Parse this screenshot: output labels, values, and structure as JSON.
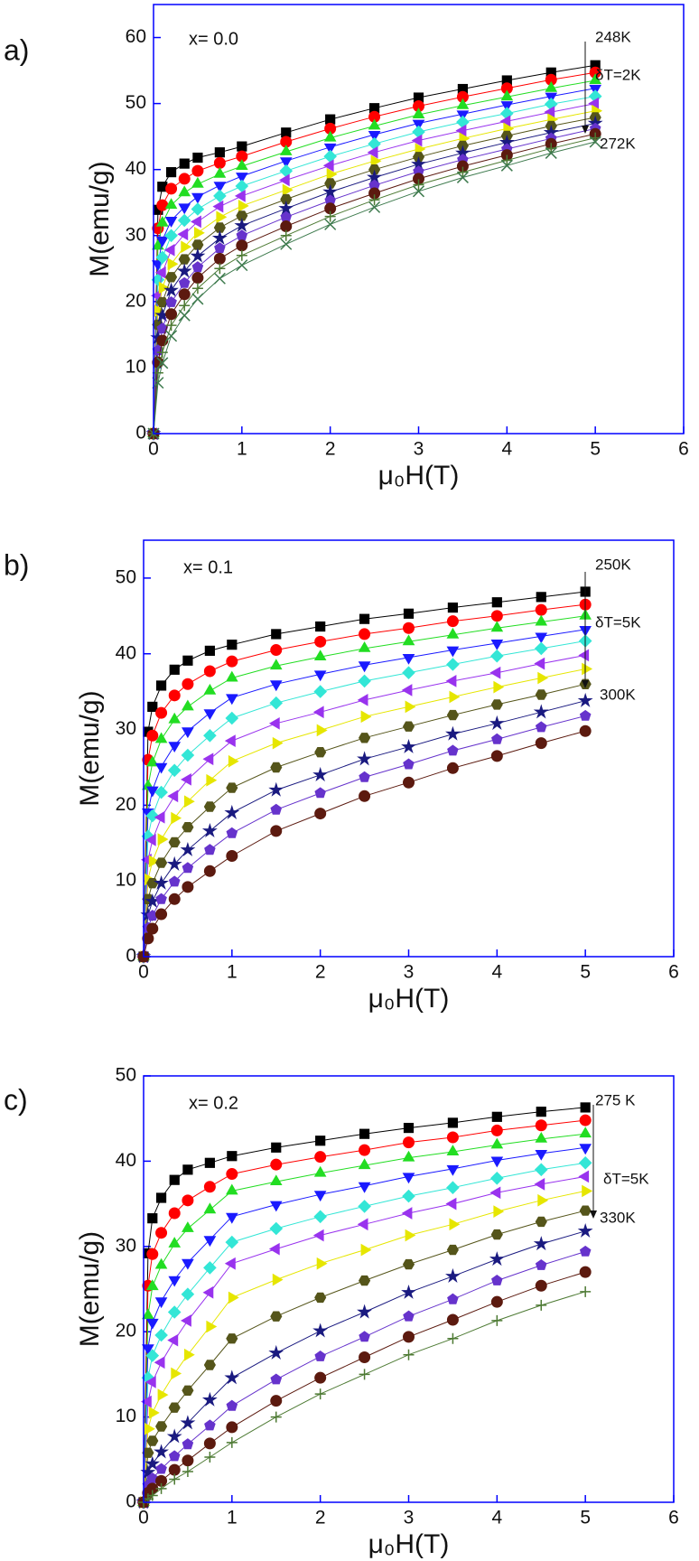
{
  "chart_data": [
    {
      "type": "line",
      "panel_label": "a)",
      "annotations": [
        "x= 0.0",
        "248K",
        "δT=2K",
        "272K"
      ],
      "xlabel": "μ₀H(T)",
      "ylabel": "M(emu/g)",
      "xlim": [
        0,
        6
      ],
      "xticks": [
        0,
        1,
        2,
        3,
        4,
        5,
        6
      ],
      "ylim": [
        0,
        65
      ],
      "yticks": [
        0,
        10,
        20,
        30,
        40,
        50,
        60
      ],
      "x": [
        0,
        0.05,
        0.1,
        0.2,
        0.35,
        0.5,
        0.75,
        1,
        1.5,
        2,
        2.5,
        3,
        3.5,
        4,
        4.5,
        5
      ],
      "series": [
        {
          "color": "#000000",
          "marker": "square",
          "values": [
            0,
            33.9,
            37.4,
            39.6,
            40.9,
            41.8,
            42.6,
            43.5,
            45.6,
            47.6,
            49.3,
            50.9,
            52.2,
            53.5,
            54.7,
            55.8
          ]
        },
        {
          "color": "#ff0000",
          "marker": "circle",
          "values": [
            0,
            31.1,
            34.6,
            37.1,
            38.6,
            39.8,
            41.0,
            42.0,
            44.2,
            46.2,
            48.0,
            49.6,
            51.0,
            52.3,
            53.6,
            54.7
          ]
        },
        {
          "color": "#22dd22",
          "marker": "triangle-up",
          "values": [
            0,
            28.4,
            31.9,
            34.6,
            36.5,
            37.8,
            39.3,
            40.5,
            42.7,
            44.8,
            46.6,
            48.3,
            49.7,
            51.0,
            52.3,
            53.5
          ]
        },
        {
          "color": "#1a1aff",
          "marker": "triangle-down",
          "values": [
            0,
            25.7,
            29.3,
            32.3,
            34.3,
            35.9,
            37.6,
            39.0,
            41.3,
            43.4,
            45.3,
            47.0,
            48.4,
            49.8,
            51.1,
            52.3
          ]
        },
        {
          "color": "#33e6d6",
          "marker": "diamond",
          "values": [
            0,
            23.3,
            26.7,
            30.0,
            32.3,
            34.0,
            36.0,
            37.5,
            39.8,
            42.0,
            43.9,
            45.7,
            47.2,
            48.5,
            49.9,
            51.1
          ]
        },
        {
          "color": "#9933ee",
          "marker": "triangle-left",
          "values": [
            0,
            20.9,
            24.4,
            27.8,
            30.2,
            32.1,
            34.4,
            36.0,
            38.4,
            40.6,
            42.6,
            44.4,
            45.9,
            47.3,
            48.7,
            50.0
          ]
        },
        {
          "color": "#e6e600",
          "marker": "triangle-right",
          "values": [
            0,
            18.6,
            22.1,
            25.7,
            28.3,
            30.4,
            32.8,
            34.5,
            36.9,
            39.3,
            41.3,
            43.1,
            44.7,
            46.2,
            47.6,
            48.9
          ]
        },
        {
          "color": "#55551a",
          "marker": "hexagon",
          "values": [
            0,
            16.5,
            19.9,
            23.7,
            26.4,
            28.6,
            31.2,
            33.0,
            35.5,
            37.9,
            40.0,
            41.9,
            43.6,
            45.1,
            46.6,
            47.9
          ]
        },
        {
          "color": "#1a1a80",
          "marker": "star",
          "values": [
            0,
            14.5,
            17.9,
            21.7,
            24.6,
            26.9,
            29.6,
            31.5,
            34.1,
            36.6,
            38.8,
            40.8,
            42.5,
            44.1,
            45.6,
            47.0
          ]
        },
        {
          "color": "#6633cc",
          "marker": "pentagon",
          "values": [
            0,
            12.6,
            15.9,
            19.9,
            22.8,
            25.2,
            28.1,
            30.0,
            32.8,
            35.3,
            37.6,
            39.7,
            41.5,
            43.1,
            44.7,
            46.2
          ]
        },
        {
          "color": "#5c1a0f",
          "marker": "circle",
          "values": [
            0,
            10.8,
            14.1,
            18.1,
            21.1,
            23.6,
            26.5,
            28.5,
            31.4,
            34.1,
            36.4,
            38.6,
            40.5,
            42.2,
            43.9,
            45.4
          ]
        },
        {
          "color": "#4d7a33",
          "marker": "plus",
          "values": [
            0,
            9.2,
            12.3,
            16.4,
            19.4,
            22.0,
            25.0,
            27.0,
            30.0,
            32.9,
            35.4,
            37.7,
            39.6,
            41.4,
            43.2,
            44.8
          ]
        },
        {
          "color": "#3d7a4d",
          "marker": "cross",
          "values": [
            0,
            7.7,
            10.7,
            14.8,
            17.9,
            20.4,
            23.5,
            25.5,
            28.7,
            31.7,
            34.3,
            36.7,
            38.8,
            40.6,
            42.5,
            44.2
          ]
        }
      ]
    },
    {
      "type": "line",
      "panel_label": "b)",
      "annotations": [
        "x= 0.1",
        "250K",
        "δT=5K",
        "300K"
      ],
      "xlabel": "μ₀H(T)",
      "ylabel": "M(emu/g)",
      "xlim": [
        0,
        6
      ],
      "xticks": [
        0,
        1,
        2,
        3,
        4,
        5,
        6
      ],
      "ylim": [
        0,
        55
      ],
      "yticks": [
        0,
        10,
        20,
        30,
        40,
        50
      ],
      "x": [
        0,
        0.05,
        0.1,
        0.2,
        0.35,
        0.5,
        0.75,
        1,
        1.5,
        2,
        2.5,
        3,
        3.5,
        4,
        4.5,
        5
      ],
      "series": [
        {
          "color": "#000000",
          "marker": "square",
          "values": [
            0,
            29.7,
            33.0,
            35.8,
            37.9,
            39.1,
            40.4,
            41.2,
            42.6,
            43.6,
            44.6,
            45.3,
            46.1,
            46.8,
            47.5,
            48.2
          ]
        },
        {
          "color": "#ff0000",
          "marker": "circle",
          "values": [
            0,
            26.0,
            29.2,
            32.2,
            34.5,
            36.0,
            37.7,
            39.0,
            40.5,
            41.6,
            42.6,
            43.4,
            44.3,
            45.0,
            45.8,
            46.5
          ]
        },
        {
          "color": "#22dd22",
          "marker": "triangle-up",
          "values": [
            0,
            22.5,
            25.6,
            28.7,
            31.3,
            33.0,
            35.1,
            36.8,
            38.4,
            39.6,
            40.7,
            41.6,
            42.5,
            43.4,
            44.2,
            45.0
          ]
        },
        {
          "color": "#1a1aff",
          "marker": "triangle-down",
          "values": [
            0,
            19.1,
            22.0,
            25.1,
            27.9,
            29.8,
            32.2,
            34.2,
            36.0,
            37.3,
            38.5,
            39.5,
            40.5,
            41.4,
            42.3,
            43.2
          ]
        },
        {
          "color": "#33e6d6",
          "marker": "diamond",
          "values": [
            0,
            15.9,
            18.6,
            21.7,
            24.6,
            26.6,
            29.2,
            31.5,
            33.5,
            35.0,
            36.4,
            37.5,
            38.6,
            39.7,
            40.7,
            41.7
          ]
        },
        {
          "color": "#9933ee",
          "marker": "triangle-left",
          "values": [
            0,
            12.8,
            15.4,
            18.4,
            21.2,
            23.4,
            26.1,
            28.5,
            30.8,
            32.3,
            33.9,
            35.2,
            36.4,
            37.5,
            38.7,
            39.8
          ]
        },
        {
          "color": "#e6e600",
          "marker": "triangle-right",
          "values": [
            0,
            10.2,
            12.6,
            15.5,
            18.3,
            20.5,
            23.3,
            25.8,
            28.2,
            29.9,
            31.7,
            33.0,
            34.3,
            35.6,
            36.8,
            38.0
          ]
        },
        {
          "color": "#55551a",
          "marker": "hexagon",
          "values": [
            0,
            7.6,
            9.7,
            12.4,
            15.1,
            17.1,
            19.8,
            22.3,
            25.0,
            27.0,
            28.9,
            30.4,
            31.9,
            33.3,
            34.6,
            36.0
          ]
        },
        {
          "color": "#1a1a80",
          "marker": "star",
          "values": [
            0,
            5.5,
            7.3,
            9.7,
            12.2,
            14.1,
            16.6,
            19.0,
            22.0,
            24.0,
            26.1,
            27.7,
            29.4,
            30.8,
            32.3,
            33.8
          ]
        },
        {
          "color": "#6633cc",
          "marker": "pentagon",
          "values": [
            0,
            3.8,
            5.4,
            7.6,
            9.9,
            11.7,
            14.1,
            16.3,
            19.4,
            21.6,
            23.7,
            25.4,
            27.2,
            28.7,
            30.3,
            31.8
          ]
        },
        {
          "color": "#5c1a0f",
          "marker": "circle",
          "values": [
            0,
            2.4,
            3.7,
            5.6,
            7.6,
            9.2,
            11.3,
            13.3,
            16.6,
            18.9,
            21.2,
            23.0,
            24.9,
            26.5,
            28.2,
            29.8
          ]
        }
      ]
    },
    {
      "type": "line",
      "panel_label": "c)",
      "annotations": [
        "x= 0.2",
        "275 K",
        "δT=5K",
        "330K"
      ],
      "xlabel": "μ₀H(T)",
      "ylabel": "M(emu/g)",
      "xlim": [
        0,
        6
      ],
      "xticks": [
        0,
        1,
        2,
        3,
        4,
        5,
        6
      ],
      "ylim": [
        0,
        50
      ],
      "yticks": [
        0,
        10,
        20,
        30,
        40,
        50
      ],
      "x": [
        0,
        0.05,
        0.1,
        0.2,
        0.35,
        0.5,
        0.75,
        1,
        1.5,
        2,
        2.5,
        3,
        3.5,
        4,
        4.5,
        5
      ],
      "series": [
        {
          "color": "#000000",
          "marker": "square",
          "values": [
            0,
            29.2,
            33.3,
            35.7,
            37.8,
            39.0,
            39.8,
            40.6,
            41.6,
            42.4,
            43.2,
            43.9,
            44.5,
            45.2,
            45.8,
            46.3
          ]
        },
        {
          "color": "#ff0000",
          "marker": "circle",
          "values": [
            0,
            25.4,
            29.1,
            31.6,
            33.9,
            35.4,
            37.0,
            38.5,
            39.6,
            40.5,
            41.3,
            42.2,
            42.8,
            43.6,
            44.2,
            44.8
          ]
        },
        {
          "color": "#22dd22",
          "marker": "triangle-up",
          "values": [
            0,
            21.9,
            25.3,
            27.8,
            30.3,
            32.1,
            34.3,
            36.5,
            37.6,
            38.6,
            39.5,
            40.4,
            41.1,
            41.9,
            42.6,
            43.2
          ]
        },
        {
          "color": "#1a1aff",
          "marker": "triangle-down",
          "values": [
            0,
            18.1,
            21.1,
            23.6,
            26.1,
            28.1,
            30.8,
            33.5,
            34.9,
            36.1,
            37.1,
            38.2,
            39.1,
            40.1,
            40.9,
            41.6
          ]
        },
        {
          "color": "#33e6d6",
          "marker": "diamond",
          "values": [
            0,
            14.6,
            17.2,
            19.6,
            22.3,
            24.4,
            27.5,
            30.5,
            32.1,
            33.5,
            34.7,
            35.9,
            36.9,
            38.0,
            39.0,
            39.8
          ]
        },
        {
          "color": "#9933ee",
          "marker": "triangle-left",
          "values": [
            0,
            11.8,
            14.1,
            16.4,
            19.0,
            21.3,
            24.6,
            28.0,
            29.7,
            31.3,
            32.6,
            33.9,
            35.0,
            36.3,
            37.3,
            38.2
          ]
        },
        {
          "color": "#e6e600",
          "marker": "triangle-right",
          "values": [
            0,
            8.6,
            10.5,
            12.6,
            15.1,
            17.3,
            20.6,
            24.0,
            26.1,
            28.0,
            29.6,
            31.3,
            32.6,
            34.1,
            35.4,
            36.5
          ]
        },
        {
          "color": "#55551a",
          "marker": "hexagon",
          "values": [
            0,
            5.8,
            7.2,
            8.9,
            11.1,
            13.1,
            16.1,
            19.2,
            21.8,
            24.0,
            26.0,
            27.9,
            29.6,
            31.4,
            32.9,
            34.2
          ]
        },
        {
          "color": "#1a1a80",
          "marker": "star",
          "values": [
            0,
            3.5,
            4.5,
            5.9,
            7.7,
            9.3,
            12.0,
            14.6,
            17.5,
            20.1,
            22.3,
            24.6,
            26.5,
            28.5,
            30.3,
            31.8
          ]
        },
        {
          "color": "#6633cc",
          "marker": "pentagon",
          "values": [
            0,
            2.0,
            2.8,
            3.9,
            5.4,
            6.8,
            9.0,
            11.3,
            14.4,
            17.1,
            19.4,
            21.8,
            23.8,
            26.0,
            27.8,
            29.4
          ]
        },
        {
          "color": "#5c1a0f",
          "marker": "circle",
          "values": [
            0,
            1.1,
            1.6,
            2.5,
            3.8,
            4.9,
            6.9,
            8.8,
            11.9,
            14.6,
            17.0,
            19.4,
            21.4,
            23.5,
            25.4,
            27.0
          ]
        },
        {
          "color": "#4d7a33",
          "marker": "plus",
          "values": [
            0,
            0.4,
            0.8,
            1.6,
            2.7,
            3.6,
            5.3,
            7.0,
            10.0,
            12.7,
            15.0,
            17.3,
            19.2,
            21.3,
            23.1,
            24.7
          ]
        }
      ]
    }
  ]
}
